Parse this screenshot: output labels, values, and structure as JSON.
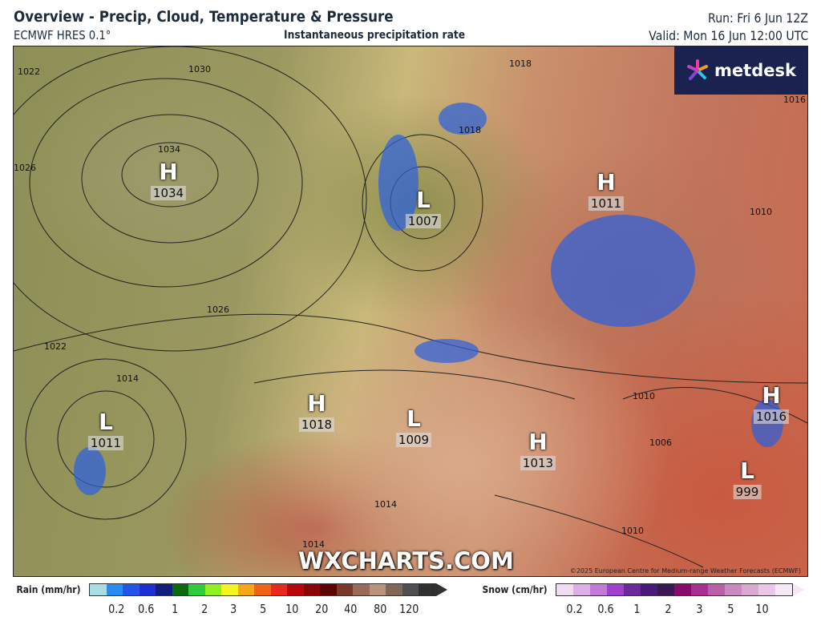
{
  "header": {
    "title": "Overview - Precip, Cloud, Temperature & Pressure",
    "model": "ECMWF HRES 0.1°",
    "layer": "Instantaneous precipitation rate",
    "run": "Run: Fri 6 Jun 12Z",
    "valid": "Valid: Mon 16 Jun 12:00 UTC"
  },
  "map": {
    "logo": "metdesk",
    "watermark": "WXCHARTS.COM",
    "copyright": "©2025 European Centre for Medium-range Weather Forecasts (ECMWF)",
    "pressure_systems": [
      {
        "type": "H",
        "value": "1034"
      },
      {
        "type": "L",
        "value": "1007"
      },
      {
        "type": "H",
        "value": "1011"
      },
      {
        "type": "L",
        "value": "1011"
      },
      {
        "type": "H",
        "value": "1018"
      },
      {
        "type": "L",
        "value": "1009"
      },
      {
        "type": "H",
        "value": "1013"
      },
      {
        "type": "H",
        "value": "1016"
      },
      {
        "type": "L",
        "value": "999"
      }
    ],
    "isobar_labels": [
      "1030",
      "1034",
      "1026",
      "1022",
      "1018",
      "1026",
      "1022",
      "1014",
      "1010",
      "1010",
      "1006",
      "1014",
      "1018",
      "1014",
      "1010",
      "1016"
    ]
  },
  "legend": {
    "rain": {
      "label": "Rain (mm/hr)",
      "ticks": [
        "0.2",
        "0.6",
        "1",
        "2",
        "3",
        "5",
        "10",
        "20",
        "40",
        "80",
        "120"
      ],
      "colors": [
        "#a8dde6",
        "#2a8cf0",
        "#2355e8",
        "#1f2fd8",
        "#10207a",
        "#0a6a10",
        "#2ecc3a",
        "#8ff020",
        "#f5f520",
        "#f7a61a",
        "#f06414",
        "#e82a1e",
        "#b8080e",
        "#8a0608",
        "#5a0404",
        "#7a3a2a",
        "#9a6a5a",
        "#b8947a",
        "#806858",
        "#505050",
        "#303030"
      ]
    },
    "snow": {
      "label": "Snow (cm/hr)",
      "ticks": [
        "0.2",
        "0.6",
        "1",
        "2",
        "3",
        "5",
        "10"
      ],
      "colors": [
        "#f0dcf0",
        "#dcb0e6",
        "#c47ad8",
        "#a040d0",
        "#6a2a9a",
        "#4a1a7a",
        "#3a1a50",
        "#8a0a6a",
        "#a83090",
        "#b860a8",
        "#c888c0",
        "#d8a8d0",
        "#e8c8e6",
        "#f6e8f6"
      ]
    }
  }
}
